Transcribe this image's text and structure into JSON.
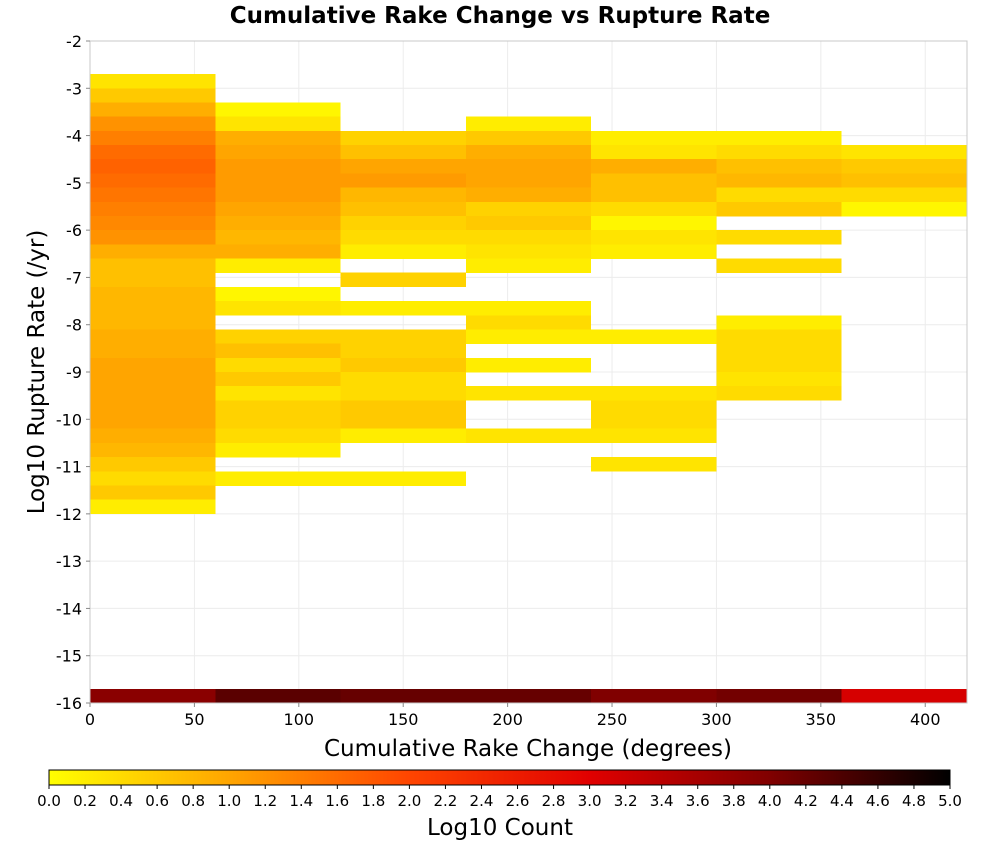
{
  "chart_data": {
    "type": "heatmap",
    "title": "Cumulative Rake Change vs Rupture Rate",
    "xlabel": "Cumulative Rake Change (degrees)",
    "ylabel": "Log10 Rupture Rate (/yr)",
    "colorbar_label": "Log10 Count",
    "xlim": [
      0,
      420
    ],
    "ylim": [
      -16,
      -2
    ],
    "grid": true,
    "x_ticks": [
      0,
      50,
      100,
      150,
      200,
      250,
      300,
      350,
      400
    ],
    "y_ticks": [
      -2,
      -3,
      -4,
      -5,
      -6,
      -7,
      -8,
      -9,
      -10,
      -11,
      -12,
      -13,
      -14,
      -15,
      -16
    ],
    "colorbar_ticks": [
      "0.0",
      "0.2",
      "0.4",
      "0.6",
      "0.8",
      "1.0",
      "1.2",
      "1.4",
      "1.6",
      "1.8",
      "2.0",
      "2.2",
      "2.4",
      "2.6",
      "2.8",
      "3.0",
      "3.2",
      "3.4",
      "3.6",
      "3.8",
      "4.0",
      "4.2",
      "4.4",
      "4.6",
      "4.8",
      "5.0"
    ],
    "colorbar_range": [
      0,
      5
    ],
    "colormap": [
      "#ffff00",
      "#ffa500",
      "#ff4500",
      "#e00000",
      "#800000",
      "#000000"
    ],
    "x_bin_width": 60,
    "y_bin_height": 0.3,
    "cells": [
      {
        "x0": 0,
        "y0": -16.0,
        "v": 3.9
      },
      {
        "x0": 60,
        "y0": -16.0,
        "v": 4.3
      },
      {
        "x0": 120,
        "y0": -16.0,
        "v": 4.2
      },
      {
        "x0": 180,
        "y0": -16.0,
        "v": 4.2
      },
      {
        "x0": 240,
        "y0": -16.0,
        "v": 4.0
      },
      {
        "x0": 300,
        "y0": -16.0,
        "v": 4.1
      },
      {
        "x0": 360,
        "y0": -16.0,
        "v": 3.1
      },
      {
        "x0": 0,
        "y0": -3.0,
        "v": 0.3
      },
      {
        "x0": 0,
        "y0": -3.3,
        "v": 0.6
      },
      {
        "x0": 0,
        "y0": -3.6,
        "v": 0.9
      },
      {
        "x0": 0,
        "y0": -3.9,
        "v": 1.2
      },
      {
        "x0": 0,
        "y0": -4.2,
        "v": 1.4
      },
      {
        "x0": 0,
        "y0": -4.5,
        "v": 1.6
      },
      {
        "x0": 0,
        "y0": -4.8,
        "v": 1.7
      },
      {
        "x0": 0,
        "y0": -5.1,
        "v": 1.6
      },
      {
        "x0": 0,
        "y0": -5.4,
        "v": 1.5
      },
      {
        "x0": 0,
        "y0": -5.7,
        "v": 1.4
      },
      {
        "x0": 0,
        "y0": -6.0,
        "v": 1.3
      },
      {
        "x0": 0,
        "y0": -6.3,
        "v": 1.2
      },
      {
        "x0": 0,
        "y0": -6.6,
        "v": 0.9
      },
      {
        "x0": 0,
        "y0": -6.9,
        "v": 0.7
      },
      {
        "x0": 0,
        "y0": -7.2,
        "v": 0.7
      },
      {
        "x0": 0,
        "y0": -7.5,
        "v": 0.8
      },
      {
        "x0": 0,
        "y0": -7.8,
        "v": 0.8
      },
      {
        "x0": 0,
        "y0": -8.1,
        "v": 0.8
      },
      {
        "x0": 0,
        "y0": -8.4,
        "v": 0.9
      },
      {
        "x0": 0,
        "y0": -8.7,
        "v": 0.9
      },
      {
        "x0": 0,
        "y0": -9.0,
        "v": 1.0
      },
      {
        "x0": 0,
        "y0": -9.3,
        "v": 1.0
      },
      {
        "x0": 0,
        "y0": -9.6,
        "v": 1.0
      },
      {
        "x0": 0,
        "y0": -9.9,
        "v": 1.0
      },
      {
        "x0": 0,
        "y0": -10.2,
        "v": 1.0
      },
      {
        "x0": 0,
        "y0": -10.5,
        "v": 0.9
      },
      {
        "x0": 0,
        "y0": -10.8,
        "v": 0.8
      },
      {
        "x0": 0,
        "y0": -11.1,
        "v": 0.6
      },
      {
        "x0": 0,
        "y0": -11.4,
        "v": 0.4
      },
      {
        "x0": 0,
        "y0": -11.7,
        "v": 0.6
      },
      {
        "x0": 0,
        "y0": -12.0,
        "v": 0.2
      },
      {
        "x0": 60,
        "y0": -3.6,
        "v": 0.1
      },
      {
        "x0": 60,
        "y0": -3.9,
        "v": 0.3
      },
      {
        "x0": 60,
        "y0": -4.2,
        "v": 0.9
      },
      {
        "x0": 60,
        "y0": -4.5,
        "v": 1.0
      },
      {
        "x0": 60,
        "y0": -4.8,
        "v": 1.1
      },
      {
        "x0": 60,
        "y0": -5.1,
        "v": 1.1
      },
      {
        "x0": 60,
        "y0": -5.4,
        "v": 1.1
      },
      {
        "x0": 60,
        "y0": -5.7,
        "v": 1.0
      },
      {
        "x0": 60,
        "y0": -6.0,
        "v": 0.9
      },
      {
        "x0": 60,
        "y0": -6.3,
        "v": 0.8
      },
      {
        "x0": 60,
        "y0": -6.6,
        "v": 0.9
      },
      {
        "x0": 60,
        "y0": -6.9,
        "v": 0.2
      },
      {
        "x0": 60,
        "y0": -7.5,
        "v": 0.1
      },
      {
        "x0": 60,
        "y0": -7.8,
        "v": 0.3
      },
      {
        "x0": 60,
        "y0": -8.4,
        "v": 0.5
      },
      {
        "x0": 60,
        "y0": -8.7,
        "v": 0.7
      },
      {
        "x0": 60,
        "y0": -9.0,
        "v": 0.4
      },
      {
        "x0": 60,
        "y0": -9.3,
        "v": 0.6
      },
      {
        "x0": 60,
        "y0": -9.6,
        "v": 0.3
      },
      {
        "x0": 60,
        "y0": -9.9,
        "v": 0.5
      },
      {
        "x0": 60,
        "y0": -10.2,
        "v": 0.5
      },
      {
        "x0": 60,
        "y0": -10.5,
        "v": 0.4
      },
      {
        "x0": 60,
        "y0": -10.8,
        "v": 0.2
      },
      {
        "x0": 60,
        "y0": -11.4,
        "v": 0.2
      },
      {
        "x0": 120,
        "y0": -4.2,
        "v": 0.5
      },
      {
        "x0": 120,
        "y0": -4.5,
        "v": 0.7
      },
      {
        "x0": 120,
        "y0": -4.8,
        "v": 1.0
      },
      {
        "x0": 120,
        "y0": -5.1,
        "v": 1.1
      },
      {
        "x0": 120,
        "y0": -5.4,
        "v": 0.8
      },
      {
        "x0": 120,
        "y0": -5.7,
        "v": 0.7
      },
      {
        "x0": 120,
        "y0": -6.0,
        "v": 0.5
      },
      {
        "x0": 120,
        "y0": -6.3,
        "v": 0.4
      },
      {
        "x0": 120,
        "y0": -6.6,
        "v": 0.2
      },
      {
        "x0": 120,
        "y0": -7.2,
        "v": 0.5
      },
      {
        "x0": 120,
        "y0": -7.8,
        "v": 0.2
      },
      {
        "x0": 120,
        "y0": -8.4,
        "v": 0.5
      },
      {
        "x0": 120,
        "y0": -8.7,
        "v": 0.5
      },
      {
        "x0": 120,
        "y0": -9.0,
        "v": 0.6
      },
      {
        "x0": 120,
        "y0": -9.3,
        "v": 0.4
      },
      {
        "x0": 120,
        "y0": -9.6,
        "v": 0.4
      },
      {
        "x0": 120,
        "y0": -9.9,
        "v": 0.6
      },
      {
        "x0": 120,
        "y0": -10.2,
        "v": 0.6
      },
      {
        "x0": 120,
        "y0": -10.5,
        "v": 0.2
      },
      {
        "x0": 120,
        "y0": -11.4,
        "v": 0.2
      },
      {
        "x0": 180,
        "y0": -3.9,
        "v": 0.2
      },
      {
        "x0": 180,
        "y0": -4.2,
        "v": 0.6
      },
      {
        "x0": 180,
        "y0": -4.5,
        "v": 0.9
      },
      {
        "x0": 180,
        "y0": -4.8,
        "v": 1.0
      },
      {
        "x0": 180,
        "y0": -5.1,
        "v": 1.0
      },
      {
        "x0": 180,
        "y0": -5.4,
        "v": 0.9
      },
      {
        "x0": 180,
        "y0": -5.7,
        "v": 0.5
      },
      {
        "x0": 180,
        "y0": -6.0,
        "v": 0.6
      },
      {
        "x0": 180,
        "y0": -6.3,
        "v": 0.4
      },
      {
        "x0": 180,
        "y0": -6.6,
        "v": 0.3
      },
      {
        "x0": 180,
        "y0": -6.9,
        "v": 0.2
      },
      {
        "x0": 180,
        "y0": -7.8,
        "v": 0.2
      },
      {
        "x0": 180,
        "y0": -8.1,
        "v": 0.4
      },
      {
        "x0": 180,
        "y0": -8.4,
        "v": 0.2
      },
      {
        "x0": 180,
        "y0": -9.0,
        "v": 0.2
      },
      {
        "x0": 180,
        "y0": -9.6,
        "v": 0.3
      },
      {
        "x0": 180,
        "y0": -10.5,
        "v": 0.3
      },
      {
        "x0": 240,
        "y0": -4.2,
        "v": 0.2
      },
      {
        "x0": 240,
        "y0": -4.5,
        "v": 0.3
      },
      {
        "x0": 240,
        "y0": -4.8,
        "v": 0.9
      },
      {
        "x0": 240,
        "y0": -5.1,
        "v": 0.7
      },
      {
        "x0": 240,
        "y0": -5.4,
        "v": 0.7
      },
      {
        "x0": 240,
        "y0": -5.7,
        "v": 0.4
      },
      {
        "x0": 240,
        "y0": -6.0,
        "v": 0.1
      },
      {
        "x0": 240,
        "y0": -6.3,
        "v": 0.3
      },
      {
        "x0": 240,
        "y0": -6.6,
        "v": 0.2
      },
      {
        "x0": 240,
        "y0": -8.4,
        "v": 0.2
      },
      {
        "x0": 240,
        "y0": -9.6,
        "v": 0.3
      },
      {
        "x0": 240,
        "y0": -9.9,
        "v": 0.4
      },
      {
        "x0": 240,
        "y0": -10.2,
        "v": 0.4
      },
      {
        "x0": 240,
        "y0": -10.5,
        "v": 0.3
      },
      {
        "x0": 240,
        "y0": -11.1,
        "v": 0.3
      },
      {
        "x0": 300,
        "y0": -4.2,
        "v": 0.2
      },
      {
        "x0": 300,
        "y0": -4.5,
        "v": 0.4
      },
      {
        "x0": 300,
        "y0": -4.8,
        "v": 0.7
      },
      {
        "x0": 300,
        "y0": -5.1,
        "v": 0.8
      },
      {
        "x0": 300,
        "y0": -5.4,
        "v": 0.4
      },
      {
        "x0": 300,
        "y0": -5.7,
        "v": 0.6
      },
      {
        "x0": 300,
        "y0": -6.3,
        "v": 0.4
      },
      {
        "x0": 300,
        "y0": -6.9,
        "v": 0.4
      },
      {
        "x0": 300,
        "y0": -8.1,
        "v": 0.2
      },
      {
        "x0": 300,
        "y0": -8.4,
        "v": 0.4
      },
      {
        "x0": 300,
        "y0": -8.7,
        "v": 0.4
      },
      {
        "x0": 300,
        "y0": -9.0,
        "v": 0.4
      },
      {
        "x0": 300,
        "y0": -9.3,
        "v": 0.3
      },
      {
        "x0": 300,
        "y0": -9.6,
        "v": 0.4
      },
      {
        "x0": 360,
        "y0": -4.5,
        "v": 0.3
      },
      {
        "x0": 360,
        "y0": -4.8,
        "v": 0.6
      },
      {
        "x0": 360,
        "y0": -5.1,
        "v": 0.7
      },
      {
        "x0": 360,
        "y0": -5.4,
        "v": 0.4
      },
      {
        "x0": 360,
        "y0": -5.7,
        "v": 0.1
      }
    ]
  }
}
